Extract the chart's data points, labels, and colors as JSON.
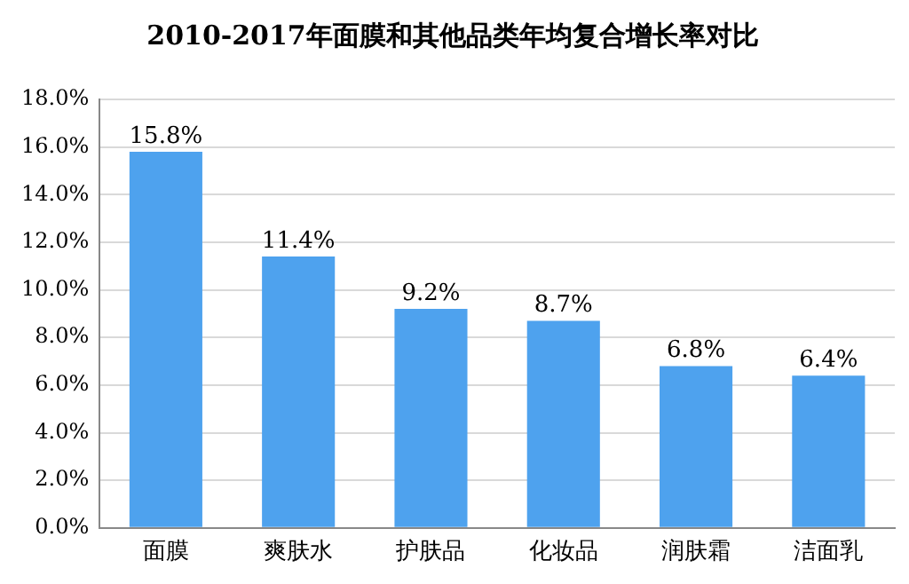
{
  "chart_data": {
    "type": "bar",
    "title": "2010-2017年面膜和其他品类年均复合增长率对比",
    "categories": [
      "面膜",
      "爽肤水",
      "护肤品",
      "化妆品",
      "润肤霜",
      "洁面乳"
    ],
    "values": [
      15.8,
      11.4,
      9.2,
      8.7,
      6.8,
      6.4
    ],
    "value_labels": [
      "15.8%",
      "11.4%",
      "9.2%",
      "8.7%",
      "6.8%",
      "6.4%"
    ],
    "color": "#4ea2ee",
    "ylim": [
      0,
      18
    ],
    "yticks": [
      {
        "value": 0,
        "label": "0.0%"
      },
      {
        "value": 2,
        "label": "2.0%"
      },
      {
        "value": 4,
        "label": "4.0%"
      },
      {
        "value": 6,
        "label": "6.0%"
      },
      {
        "value": 8,
        "label": "8.0%"
      },
      {
        "value": 10,
        "label": "10.0%"
      },
      {
        "value": 12,
        "label": "12.0%"
      },
      {
        "value": 14,
        "label": "14.0%"
      },
      {
        "value": 16,
        "label": "16.0%"
      },
      {
        "value": 18,
        "label": "18.0%"
      }
    ],
    "grid": "y"
  }
}
